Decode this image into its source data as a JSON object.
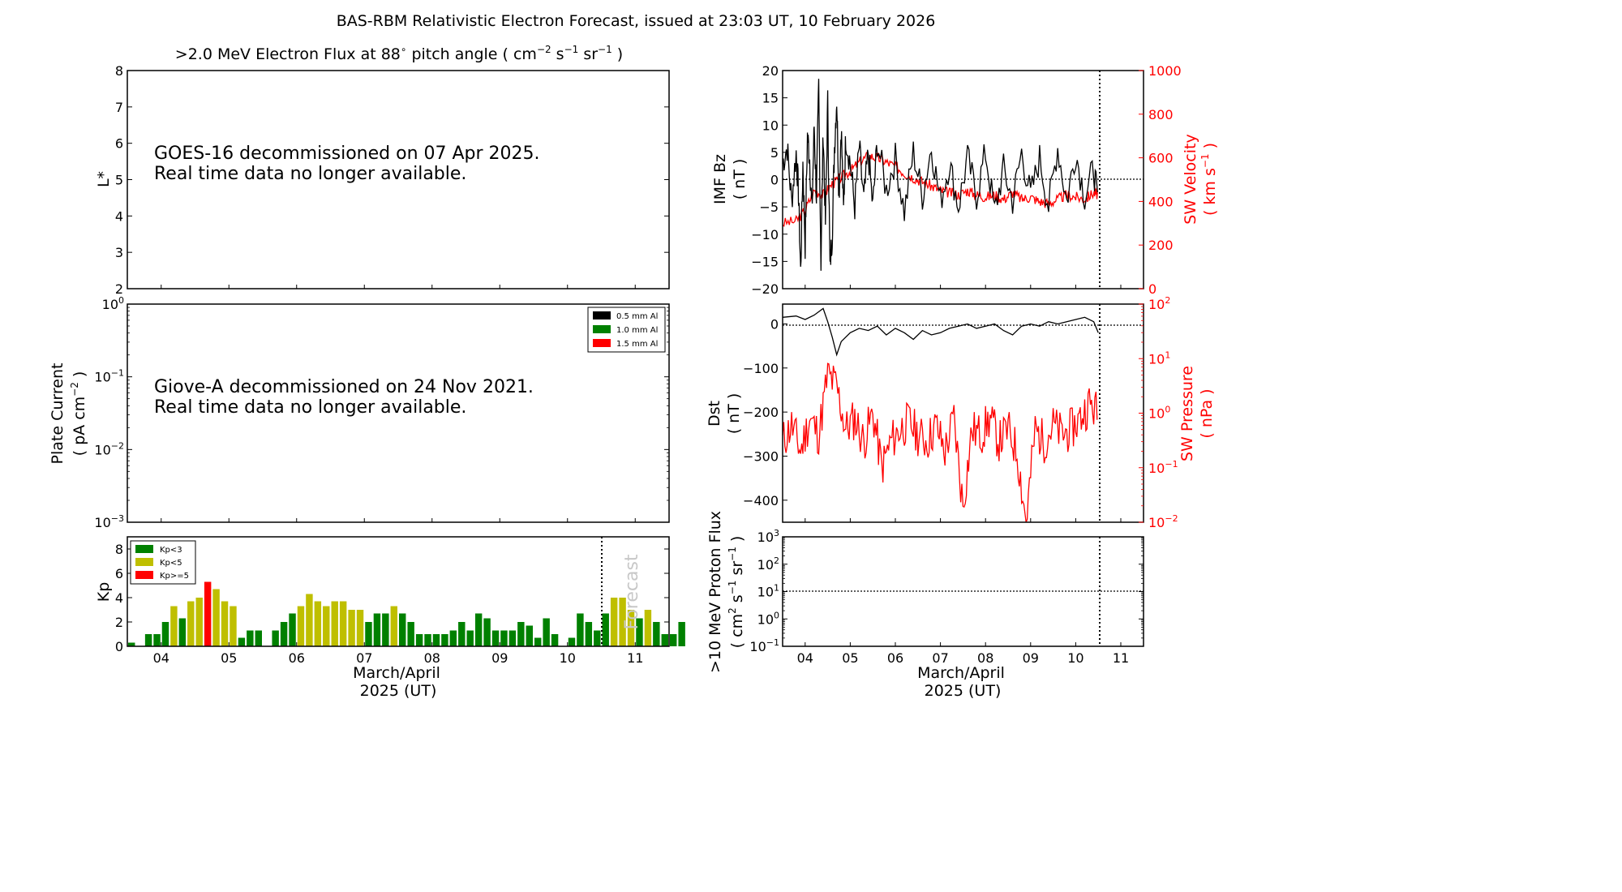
{
  "title": "BAS-RBM Relativistic Electron Forecast, issued at 23:03 UT, 10 February 2026",
  "colors": {
    "black": "#000000",
    "red": "#ff0000",
    "green": "#008000",
    "olive": "#bfbf00",
    "forecast_text": "#c8c8c8"
  },
  "x_axis": {
    "day_ticks": [
      "04",
      "05",
      "06",
      "07",
      "08",
      "09",
      "10",
      "11"
    ],
    "xlabel_line1": "March/April",
    "xlabel_line2": "2025 (UT)"
  },
  "electron_panel": {
    "title_prefix": ">2.0 MeV Electron Flux at 88",
    "title_degree": "∘",
    "title_mid": " pitch angle ( cm",
    "title_sup1": "−2",
    "title_s": " s",
    "title_sup2": "−1",
    "title_sr": " sr",
    "title_sup3": "−1",
    "title_end": " )",
    "ylabel": "L*",
    "yticks": [
      "2",
      "3",
      "4",
      "5",
      "6",
      "7",
      "8"
    ],
    "message_line1": "GOES-16 decommissioned on 07 Apr 2025.",
    "message_line2": "Real time data no longer available."
  },
  "plate_panel": {
    "ylabel_line1": "Plate Current",
    "ylabel_line2_prefix": "( pA cm",
    "ylabel_line2_sup": "−2",
    "ylabel_line2_end": " )",
    "ytick_exponents": [
      "0",
      "−1",
      "−2",
      "−3"
    ],
    "ytick_base": "10",
    "legend": [
      {
        "label": "0.5 mm Al",
        "color": "#000000"
      },
      {
        "label": "1.0 mm Al",
        "color": "#008000"
      },
      {
        "label": "1.5 mm Al",
        "color": "#ff0000"
      }
    ],
    "message_line1": "Giove-A decommissioned on 24 Nov 2021.",
    "message_line2": "Real time data no longer available."
  },
  "kp_panel": {
    "ylabel": "Kp",
    "yticks": [
      "0",
      "2",
      "4",
      "6",
      "8"
    ],
    "legend": [
      {
        "label": "Kp<3",
        "color": "#008000"
      },
      {
        "label": "Kp<5",
        "color": "#bfbf00"
      },
      {
        "label": "Kp>=5",
        "color": "#ff0000"
      }
    ],
    "forecast_label": "Forecast"
  },
  "imf_panel": {
    "ylabel_line1": "IMF Bz",
    "ylabel_line2": "( nT )",
    "yticks": [
      "−20",
      "−15",
      "−10",
      "−5",
      "0",
      "5",
      "10",
      "15",
      "20"
    ],
    "right_ylabel_line1": "SW Velocity",
    "right_ylabel_line2_prefix": "( km s",
    "right_ylabel_line2_sup": "−1",
    "right_ylabel_line2_end": " )",
    "right_yticks": [
      "0",
      "200",
      "400",
      "600",
      "800",
      "1000"
    ]
  },
  "dst_panel": {
    "ylabel_line1": "Dst",
    "ylabel_line2": "( nT )",
    "yticks": [
      "0",
      "−100",
      "−200",
      "−300",
      "−400"
    ],
    "right_ylabel_line1": "SW Pressure",
    "right_ylabel_line2": "( nPa )",
    "right_ytick_base": "10",
    "right_ytick_exponents": [
      "2",
      "1",
      "0",
      "−1",
      "−2"
    ]
  },
  "proton_panel": {
    "ylabel_line1": ">10 MeV Proton Flux",
    "ylabel_line2_a": "( cm",
    "ylabel_line2_sup1": "2",
    "ylabel_line2_b": " s",
    "ylabel_line2_sup2": "−1",
    "ylabel_line2_c": " sr",
    "ylabel_line2_sup3": "−1",
    "ylabel_line2_d": " )",
    "ytick_base": "10",
    "ytick_exponents": [
      "3",
      "2",
      "1",
      "0",
      "−1"
    ]
  },
  "chart_data": [
    {
      "type": "bar",
      "name_panel": "Kp index",
      "x_unit": "days",
      "x_start": 3.5,
      "bar_step_days": 0.125,
      "values": [
        0.3,
        0,
        1,
        1,
        2,
        3.3,
        2.3,
        3.7,
        4,
        5.3,
        4.7,
        3.7,
        3.3,
        0.7,
        1.3,
        1.3,
        0,
        1.3,
        2,
        2.7,
        3.3,
        4.3,
        3.7,
        3.3,
        3.7,
        3.7,
        3,
        3,
        2,
        2.7,
        2.7,
        3.3,
        2.7,
        2,
        1,
        1,
        1,
        1,
        1.3,
        2,
        1.3,
        2.7,
        2.3,
        1.3,
        1.3,
        1.3,
        2,
        1.7,
        0.7,
        2.3,
        1,
        0,
        0.7,
        2.7,
        2,
        1.3,
        2.7,
        4,
        4,
        3,
        2.3,
        3,
        2,
        1,
        1,
        2
      ],
      "forecast_from_index": 56,
      "ylim": [
        0,
        9
      ],
      "forecast_line_x": 10.5
    },
    {
      "type": "line",
      "name_panel": "IMF Bz and SW Velocity",
      "xlim": [
        3.5,
        11.5
      ],
      "ylim_left": [
        -20,
        20
      ],
      "ylim_right": [
        0,
        1000
      ],
      "series": [
        {
          "axis": "left",
          "color": "#000000",
          "x": [
            3.5,
            3.6,
            3.7,
            3.8,
            3.85,
            3.9,
            3.95,
            4.0,
            4.05,
            4.1,
            4.15,
            4.2,
            4.25,
            4.3,
            4.35,
            4.4,
            4.45,
            4.5,
            4.55,
            4.6,
            4.65,
            4.7,
            4.75,
            4.8,
            4.85,
            4.9,
            5.0,
            5.1,
            5.2,
            5.3,
            5.4,
            5.5,
            5.6,
            5.8,
            6.0,
            6.2,
            6.4,
            6.6,
            6.8,
            7.0,
            7.2,
            7.4,
            7.6,
            7.8,
            8.0,
            8.2,
            8.4,
            8.6,
            8.8,
            9.0,
            9.2,
            9.4,
            9.6,
            9.8,
            10.0,
            10.2,
            10.4,
            10.5
          ],
          "y": [
            3,
            6,
            -4,
            5,
            -2,
            -17,
            3,
            -12,
            8,
            4,
            -6,
            10,
            -3,
            17,
            -15,
            9,
            -8,
            14,
            -16,
            -10,
            6,
            15,
            -3,
            10,
            -6,
            8,
            3,
            -5,
            6,
            -4,
            5,
            -5,
            7,
            -2,
            4,
            -6,
            5,
            -3,
            6,
            -4,
            3,
            -5,
            4,
            -3,
            5,
            -6,
            2,
            -4,
            5,
            -3,
            4,
            -5,
            6,
            -4,
            5,
            -3,
            2,
            -5
          ]
        },
        {
          "axis": "right",
          "color": "#ff0000",
          "x": [
            3.5,
            3.8,
            4.0,
            4.2,
            4.4,
            4.6,
            4.8,
            5.0,
            5.2,
            5.4,
            5.6,
            5.8,
            6.0,
            6.2,
            6.4,
            6.6,
            6.8,
            7.0,
            7.2,
            7.4,
            7.6,
            7.8,
            8.0,
            8.2,
            8.4,
            8.6,
            8.8,
            9.0,
            9.2,
            9.4,
            9.6,
            9.8,
            10.0,
            10.2,
            10.4,
            10.5
          ],
          "y": [
            300,
            310,
            360,
            450,
            430,
            480,
            510,
            540,
            580,
            610,
            600,
            580,
            560,
            530,
            510,
            490,
            470,
            450,
            440,
            430,
            450,
            430,
            420,
            430,
            410,
            440,
            410,
            420,
            400,
            390,
            410,
            430,
            420,
            410,
            440,
            430
          ]
        }
      ]
    },
    {
      "type": "line",
      "name_panel": "Dst and SW Pressure",
      "xlim": [
        3.5,
        11.5
      ],
      "ylim_left": [
        -450,
        45
      ],
      "ylim_right_log10": [
        -2,
        2
      ],
      "series": [
        {
          "axis": "left",
          "color": "#000000",
          "x": [
            3.5,
            3.8,
            4.0,
            4.2,
            4.4,
            4.5,
            4.6,
            4.7,
            4.8,
            5.0,
            5.2,
            5.4,
            5.6,
            5.8,
            6.0,
            6.2,
            6.4,
            6.6,
            6.8,
            7.0,
            7.2,
            7.4,
            7.6,
            7.8,
            8.0,
            8.2,
            8.4,
            8.6,
            8.8,
            9.0,
            9.2,
            9.4,
            9.6,
            9.8,
            10.0,
            10.2,
            10.4,
            10.5
          ],
          "y": [
            15,
            18,
            10,
            20,
            35,
            5,
            -30,
            -70,
            -40,
            -20,
            -10,
            -15,
            -5,
            -25,
            -10,
            -20,
            -35,
            -15,
            -25,
            -20,
            -10,
            -5,
            0,
            -10,
            -5,
            0,
            -15,
            -25,
            -5,
            0,
            -5,
            5,
            0,
            5,
            10,
            15,
            5,
            -20
          ]
        },
        {
          "axis": "right",
          "color": "#ff0000",
          "x": [
            3.5,
            3.7,
            3.9,
            4.1,
            4.3,
            4.5,
            4.7,
            4.9,
            5.1,
            5.3,
            5.5,
            5.7,
            5.9,
            6.1,
            6.3,
            6.5,
            6.7,
            6.9,
            7.1,
            7.3,
            7.5,
            7.7,
            7.9,
            8.1,
            8.3,
            8.5,
            8.7,
            8.9,
            9.1,
            9.3,
            9.5,
            9.7,
            9.9,
            10.1,
            10.3,
            10.5
          ],
          "y": [
            0.3,
            0.6,
            0.2,
            0.8,
            0.4,
            5,
            3,
            0.5,
            0.8,
            0.3,
            1,
            0.1,
            0.3,
            0.5,
            0.7,
            0.4,
            0.3,
            0.6,
            0.2,
            0.8,
            0.02,
            0.5,
            0.4,
            0.8,
            0.3,
            0.5,
            0.2,
            0.01,
            0.5,
            0.3,
            0.6,
            0.4,
            0.5,
            0.8,
            1.5,
            1
          ]
        }
      ]
    },
    {
      "type": "line",
      "name_panel": ">10 MeV Proton Flux",
      "xlim": [
        3.5,
        11.5
      ],
      "ylim_log10": [
        -1,
        3
      ],
      "threshold": 10
    }
  ]
}
